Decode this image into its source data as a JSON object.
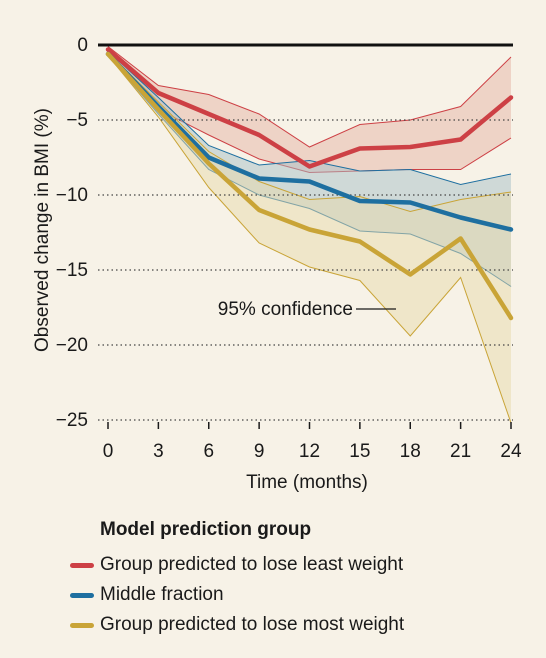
{
  "chart_data": {
    "type": "line",
    "title": "",
    "xlabel": "Time (months)",
    "ylabel": "Observed change in BMI (%)",
    "x": [
      0,
      3,
      6,
      9,
      12,
      15,
      18,
      21,
      24
    ],
    "xticks": [
      "0",
      "3",
      "6",
      "9",
      "12",
      "15",
      "18",
      "21",
      "24"
    ],
    "yticks": [
      {
        "value": 0,
        "label": "0"
      },
      {
        "value": -5,
        "label": "−5"
      },
      {
        "value": -10,
        "label": "−10"
      },
      {
        "value": -15,
        "label": "−15"
      },
      {
        "value": -20,
        "label": "−20"
      },
      {
        "value": -25,
        "label": "−25"
      }
    ],
    "xlim": [
      0,
      24
    ],
    "ylim": [
      -25,
      0
    ],
    "grid": "horizontal dotted",
    "series": [
      {
        "name": "Group predicted to lose least weight",
        "color": "#cd4045",
        "band_color": "#e6b3a5",
        "values": [
          -0.3,
          -3.2,
          -4.6,
          -6.0,
          -8.1,
          -6.9,
          -6.8,
          -6.3,
          -3.5
        ],
        "lower": [
          -0.6,
          -4.3,
          -6.0,
          -7.6,
          -8.5,
          -8.4,
          -8.3,
          -8.3,
          -6.2
        ],
        "upper": [
          -0.1,
          -2.7,
          -3.3,
          -4.6,
          -6.8,
          -5.3,
          -5.0,
          -4.1,
          -0.8
        ]
      },
      {
        "name": "Middle fraction",
        "color": "#1e6fa0",
        "band_color": "#a8bfc8",
        "values": [
          -0.6,
          -4.1,
          -7.5,
          -8.9,
          -9.1,
          -10.4,
          -10.5,
          -11.5,
          -12.3
        ],
        "lower": [
          -0.7,
          -4.6,
          -8.3,
          -10.0,
          -10.9,
          -12.4,
          -12.6,
          -13.9,
          -16.1
        ],
        "upper": [
          -0.4,
          -3.5,
          -6.7,
          -8.0,
          -7.7,
          -8.4,
          -8.3,
          -9.3,
          -8.6
        ]
      },
      {
        "name": "Group predicted to lose most weight",
        "color": "#c9a437",
        "band_color": "#e7d9ab",
        "values": [
          -0.6,
          -4.3,
          -7.9,
          -11.0,
          -12.3,
          -13.1,
          -15.3,
          -12.9,
          -18.2
        ],
        "lower": [
          -0.7,
          -4.8,
          -9.5,
          -13.2,
          -14.8,
          -15.7,
          -19.4,
          -15.5,
          -25.2
        ],
        "upper": [
          -0.5,
          -3.8,
          -7.1,
          -9.1,
          -10.3,
          -10.1,
          -11.1,
          -10.3,
          -9.8
        ]
      }
    ],
    "annotation": "95% confidence",
    "legend": {
      "title": "Model prediction group",
      "position": "bottom-left"
    }
  }
}
